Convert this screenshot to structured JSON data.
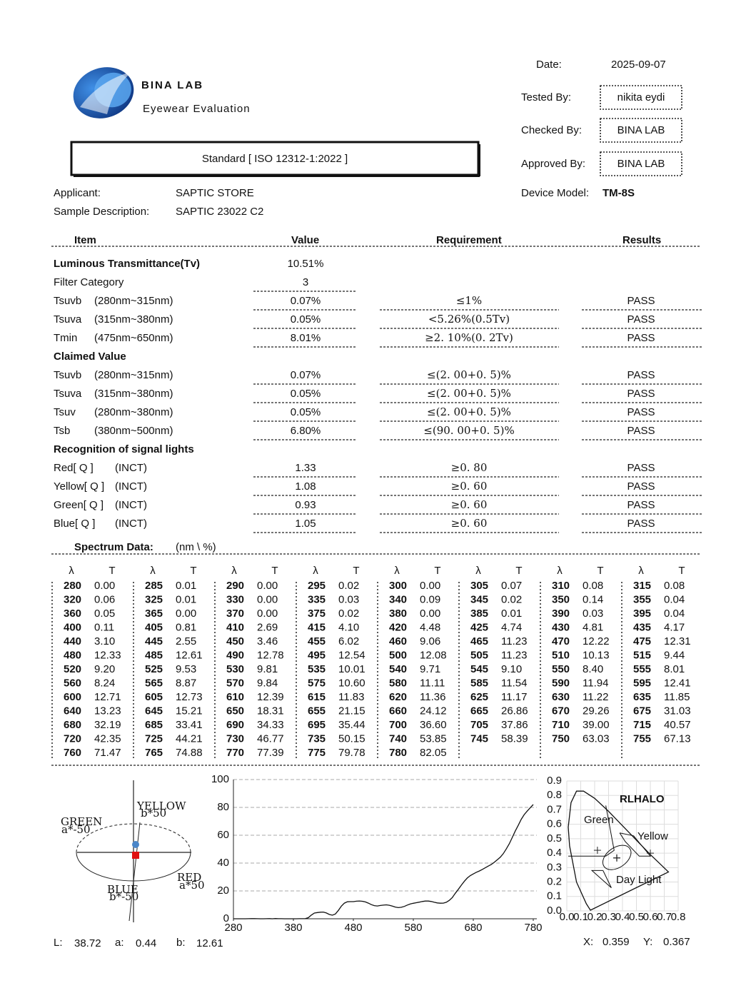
{
  "header": {
    "logo_title": "BINA LAB",
    "logo_subtitle": "Eyewear Evaluation",
    "standard": "Standard [ ISO 12312-1:2022 ]",
    "date_label": "Date:",
    "date": "2025-09-07",
    "tested_by_label": "Tested By:",
    "tested_by": "nikita eydi",
    "checked_by_label": "Checked By:",
    "checked_by": "BINA LAB",
    "approved_by_label": "Approved By:",
    "approved_by": "BINA LAB",
    "device_model_label": "Device Model:",
    "device_model": "TM-8S",
    "applicant_label": "Applicant:",
    "applicant": "SAPTIC STORE",
    "sample_label": "Sample Description:",
    "sample": "SAPTIC 23022 C2"
  },
  "tests": {
    "columns": [
      "Item",
      "Value",
      "Requirement",
      "Results"
    ],
    "sections": [
      {
        "title": "Luminous Transmittance(Tv)",
        "value": "10.51%",
        "rows": [
          {
            "item": "Filter Category",
            "value": "3"
          },
          {
            "item": "Tsuvb",
            "range": "(280nm~315nm)",
            "value": "0.07%",
            "requirement": "≤1%",
            "result": "PASS"
          },
          {
            "item": "Tsuva",
            "range": "(315nm~380nm)",
            "value": "0.05%",
            "requirement": "<5.26%(0.5Tv)",
            "result": "PASS"
          },
          {
            "item": "Tmin",
            "range": "(475nm~650nm)",
            "value": "8.01%",
            "requirement": "≥2. 10%(0. 2Tv)",
            "result": "PASS"
          }
        ]
      },
      {
        "title": "Claimed Value",
        "rows": [
          {
            "item": "Tsuvb",
            "range": "(280nm~315nm)",
            "value": "0.07%",
            "requirement": "≤(2. 00+0. 5)%",
            "result": "PASS"
          },
          {
            "item": "Tsuva",
            "range": "(315nm~380nm)",
            "value": "0.05%",
            "requirement": "≤(2. 00+0. 5)%",
            "result": "PASS"
          },
          {
            "item": "Tsuv",
            "range": "(280nm~380nm)",
            "value": "0.05%",
            "requirement": "≤(2. 00+0. 5)%",
            "result": "PASS"
          },
          {
            "item": "Tsb",
            "range": "(380nm~500nm)",
            "value": "6.80%",
            "requirement": "≤(90. 00+0. 5)%",
            "result": "PASS"
          }
        ]
      },
      {
        "title": "Recognition of signal lights",
        "rows": [
          {
            "item": "Red[ Q ]",
            "range": "(INCT)",
            "value": "1.33",
            "requirement": "≥0. 80",
            "result": "PASS"
          },
          {
            "item": "Yellow[ Q ]",
            "range": "(INCT)",
            "value": "1.08",
            "requirement": "≥0. 60",
            "result": "PASS"
          },
          {
            "item": "Green[ Q ]",
            "range": "(INCT)",
            "value": "0.93",
            "requirement": "≥0. 60",
            "result": "PASS"
          },
          {
            "item": "Blue[ Q ]",
            "range": "(INCT)",
            "value": "1.05",
            "requirement": "≥0. 60",
            "result": "PASS"
          }
        ]
      }
    ]
  },
  "spectrum": {
    "title": "Spectrum Data:",
    "unit": "(nm \\ %)",
    "column_headers": [
      "λ",
      "T"
    ],
    "wavelengths": [
      280,
      285,
      290,
      295,
      300,
      305,
      310,
      315,
      320,
      325,
      330,
      335,
      340,
      345,
      350,
      355,
      360,
      365,
      370,
      375,
      380,
      385,
      390,
      395,
      400,
      405,
      410,
      415,
      420,
      425,
      430,
      435,
      440,
      445,
      450,
      455,
      460,
      465,
      470,
      475,
      480,
      485,
      490,
      495,
      500,
      505,
      510,
      515,
      520,
      525,
      530,
      535,
      540,
      545,
      550,
      555,
      560,
      565,
      570,
      575,
      580,
      585,
      590,
      595,
      600,
      605,
      610,
      615,
      620,
      625,
      630,
      635,
      640,
      645,
      650,
      655,
      660,
      665,
      670,
      675,
      680,
      685,
      690,
      695,
      700,
      705,
      710,
      715,
      720,
      725,
      730,
      735,
      740,
      745,
      750,
      755,
      760,
      765,
      770,
      775,
      780
    ],
    "transmittance": [
      "0.00",
      "0.01",
      "0.00",
      "0.02",
      "0.00",
      "0.07",
      "0.08",
      "0.08",
      "0.06",
      "0.01",
      "0.00",
      "0.03",
      "0.09",
      "0.02",
      "0.14",
      "0.04",
      "0.05",
      "0.00",
      "0.00",
      "0.02",
      "0.00",
      "0.01",
      "0.03",
      "0.04",
      "0.11",
      "0.81",
      "2.69",
      "4.10",
      "4.48",
      "4.74",
      "4.81",
      "4.17",
      "3.10",
      "2.55",
      "3.46",
      "6.02",
      "9.06",
      "11.23",
      "12.22",
      "12.31",
      "12.33",
      "12.61",
      "12.78",
      "12.54",
      "12.08",
      "11.23",
      "10.13",
      "9.44",
      "9.20",
      "9.53",
      "9.81",
      "10.01",
      "9.71",
      "9.10",
      "8.40",
      "8.01",
      "8.24",
      "8.87",
      "9.84",
      "10.60",
      "11.11",
      "11.54",
      "11.94",
      "12.41",
      "12.71",
      "12.73",
      "12.39",
      "11.83",
      "11.36",
      "11.17",
      "11.22",
      "11.85",
      "13.23",
      "15.21",
      "18.31",
      "21.15",
      "24.12",
      "26.86",
      "29.26",
      "31.03",
      "32.19",
      "33.41",
      "34.33",
      "35.44",
      "36.60",
      "37.86",
      "39.00",
      "40.57",
      "42.35",
      "44.21",
      "46.77",
      "50.15",
      "53.85",
      "58.39",
      "63.03",
      "67.13",
      "71.47",
      "74.88",
      "77.39",
      "79.78",
      "82.05"
    ]
  },
  "spectrum_chart": {
    "type": "line",
    "xlim": [
      280,
      780
    ],
    "ylim": [
      0,
      100
    ],
    "xticks": [
      280,
      380,
      480,
      580,
      680,
      780
    ],
    "yticks": [
      0,
      20,
      40,
      60,
      80,
      100
    ],
    "grid": true,
    "color": "#111111"
  },
  "lab": {
    "axes": [
      {
        "name": "YELLOW",
        "scale": "b*50"
      },
      {
        "name": "GREEN",
        "scale": "a*-50"
      },
      {
        "name": "RED",
        "scale": "a*50"
      },
      {
        "name": "BLUE",
        "scale": "b*-50"
      }
    ],
    "L_label": "L:",
    "L": 38.72,
    "a_label": "a:",
    "a": 0.44,
    "b_label": "b:",
    "b": 12.61
  },
  "chromaticity": {
    "title": "RLHALO",
    "regions": [
      "Green",
      "Yellow",
      "Day Light"
    ],
    "xlim": [
      0,
      0.8
    ],
    "ylim": [
      0,
      0.9
    ],
    "xticks": [
      {
        "value": 0,
        "label": "0.0"
      },
      0.1,
      0.2,
      0.3,
      0.4,
      0.5,
      0.6,
      0.7,
      0.8
    ],
    "yticks": [
      {
        "value": 0,
        "label": "0.0"
      },
      0.1,
      0.2,
      0.3,
      0.4,
      0.5,
      0.6,
      0.7,
      0.8,
      0.9
    ],
    "x_label": "X:",
    "x": 0.359,
    "y_label": "Y:",
    "y": 0.367
  }
}
